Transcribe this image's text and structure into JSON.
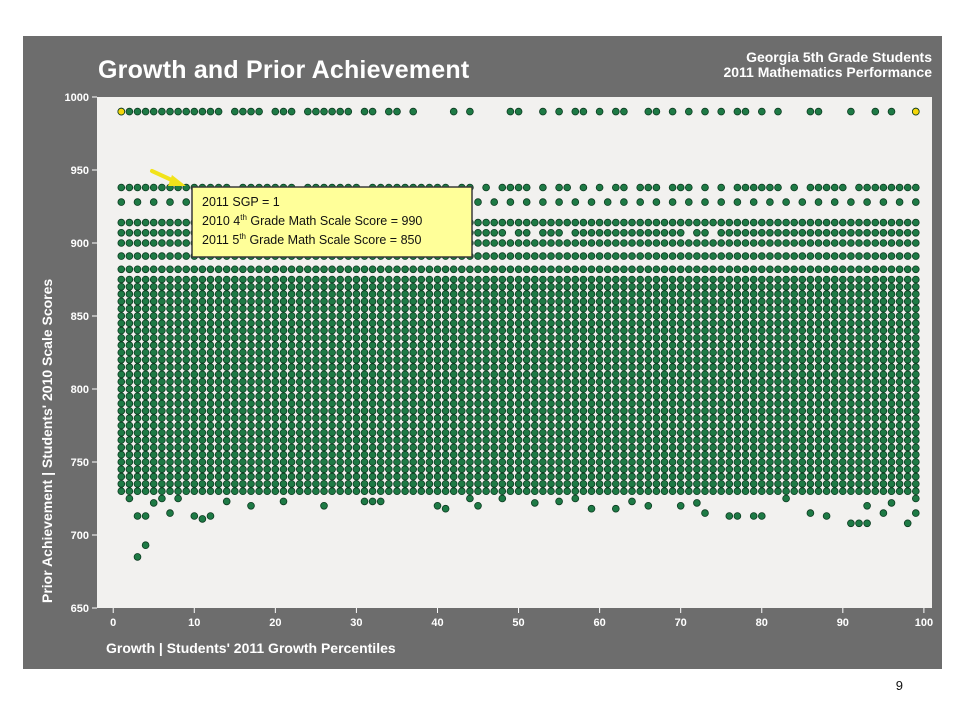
{
  "page": {
    "title": "Growth and Prior Achievement",
    "subtitle_line1": "Georgia 5th Grade Students",
    "subtitle_line2": "2011 Mathematics Performance",
    "page_number": "9"
  },
  "colors": {
    "panel_bg": "#6d6d6d",
    "plot_bg": "#f2f1ef",
    "point_fill": "#1e7a45",
    "point_stroke": "#0c3b20",
    "highlight_fill": "#f5d60a",
    "callout_bg": "#ffff99",
    "arrow": "#f2e31a"
  },
  "callout": {
    "line1": "2011 SGP = 1",
    "line2_pre": "2010 4",
    "line2_sup": "th",
    "line2_post": " Grade Math Scale Score = 990",
    "line3_pre": "2011 5",
    "line3_sup": "th",
    "line3_post": " Grade Math Scale Score = 850"
  },
  "chart_data": {
    "type": "scatter",
    "xlabel": "Growth | Students' 2011 Growth Percentiles",
    "ylabel": "Prior Achievement | Students' 2010 Scale Scores",
    "xlim": [
      -2,
      101
    ],
    "ylim": [
      650,
      1000
    ],
    "xticks": [
      0,
      10,
      20,
      30,
      40,
      50,
      60,
      70,
      80,
      90,
      100
    ],
    "yticks": [
      650,
      700,
      750,
      800,
      850,
      900,
      950,
      1000
    ],
    "grid": false,
    "dense_band": {
      "x_range": [
        1,
        99
      ],
      "y_range": [
        735,
        870
      ],
      "note_rows_step": 5
    },
    "discrete_rows": [
      {
        "y": 990,
        "x": [
          1,
          2,
          3,
          4,
          5,
          6,
          7,
          8,
          9,
          10,
          11,
          12,
          13,
          15,
          16,
          17,
          18,
          20,
          21,
          22,
          24,
          25,
          26,
          27,
          28,
          29,
          31,
          32,
          34,
          35,
          37,
          42,
          44,
          49,
          50,
          53,
          55,
          57,
          58,
          60,
          62,
          63,
          66,
          67,
          69,
          71,
          73,
          75,
          77,
          78,
          80,
          82,
          86,
          87,
          91,
          94,
          96,
          99
        ]
      },
      {
        "y": 938,
        "x": [
          1,
          2,
          3,
          4,
          5,
          6,
          7,
          8,
          9,
          10,
          11,
          12,
          13,
          14,
          16,
          17,
          18,
          19,
          20,
          21,
          22,
          24,
          25,
          26,
          27,
          28,
          29,
          30,
          32,
          33,
          34,
          35,
          36,
          37,
          38,
          39,
          40,
          41,
          43,
          44,
          46,
          48,
          49,
          50,
          51,
          53,
          55,
          56,
          58,
          60,
          62,
          63,
          65,
          66,
          67,
          69,
          70,
          71,
          73,
          75,
          77,
          78,
          79,
          80,
          81,
          82,
          84,
          86,
          87,
          88,
          89,
          90,
          92,
          93,
          94,
          95,
          96,
          97,
          98,
          99
        ]
      },
      {
        "y": 928,
        "x": [
          1,
          3,
          5,
          7,
          9,
          11,
          13,
          15,
          17,
          19,
          21,
          23,
          25,
          27,
          29,
          31,
          33,
          35,
          37,
          39,
          41,
          43,
          45,
          47,
          49,
          51,
          53,
          55,
          57,
          59,
          61,
          63,
          65,
          67,
          69,
          71,
          73,
          75,
          77,
          79,
          81,
          83,
          85,
          87,
          89,
          91,
          93,
          95,
          97,
          99
        ]
      },
      {
        "y": 914,
        "x": [
          1,
          2,
          3,
          4,
          5,
          6,
          7,
          8,
          9,
          10,
          11,
          12,
          13,
          14,
          15,
          16,
          17,
          18,
          19,
          20,
          21,
          22,
          23,
          24,
          25,
          26,
          27,
          28,
          29,
          30,
          31,
          32,
          33,
          34,
          35,
          36,
          37,
          38,
          39,
          40,
          41,
          42,
          43,
          44,
          45,
          46,
          47,
          48,
          49,
          50,
          51,
          52,
          53,
          54,
          55,
          56,
          57,
          58,
          59,
          60,
          61,
          62,
          63,
          64,
          65,
          66,
          67,
          68,
          69,
          70,
          71,
          72,
          73,
          74,
          75,
          76,
          77,
          78,
          79,
          80,
          81,
          82,
          83,
          84,
          85,
          86,
          87,
          88,
          89,
          90,
          91,
          92,
          93,
          94,
          95,
          96,
          97,
          98,
          99
        ]
      },
      {
        "y": 907,
        "x": [
          1,
          2,
          3,
          4,
          5,
          6,
          7,
          8,
          9,
          10,
          11,
          12,
          13,
          14,
          15,
          16,
          17,
          18,
          19,
          20,
          21,
          22,
          23,
          24,
          25,
          26,
          27,
          28,
          29,
          30,
          31,
          32,
          33,
          34,
          35,
          37,
          38,
          39,
          40,
          41,
          42,
          44,
          45,
          46,
          47,
          48,
          50,
          51,
          53,
          54,
          55,
          57,
          58,
          59,
          60,
          61,
          62,
          63,
          64,
          65,
          66,
          67,
          68,
          69,
          70,
          72,
          73,
          75,
          76,
          77,
          78,
          79,
          80,
          81,
          82,
          83,
          84,
          85,
          86,
          87,
          88,
          89,
          90,
          91,
          92,
          93,
          94,
          95,
          96,
          97,
          98,
          99
        ]
      },
      {
        "y": 900,
        "x": [
          1,
          2,
          3,
          4,
          5,
          6,
          7,
          8,
          9,
          10,
          11,
          12,
          13,
          14,
          15,
          16,
          17,
          18,
          19,
          20,
          21,
          22,
          23,
          24,
          25,
          26,
          27,
          28,
          29,
          30,
          31,
          32,
          33,
          34,
          35,
          36,
          37,
          38,
          39,
          40,
          41,
          42,
          43,
          44,
          45,
          46,
          47,
          48,
          49,
          50,
          51,
          52,
          53,
          54,
          55,
          56,
          57,
          58,
          59,
          60,
          61,
          62,
          63,
          64,
          65,
          66,
          67,
          68,
          69,
          70,
          71,
          72,
          73,
          74,
          75,
          76,
          77,
          78,
          79,
          80,
          81,
          82,
          83,
          84,
          85,
          86,
          87,
          88,
          89,
          90,
          91,
          92,
          93,
          94,
          95,
          96,
          97,
          98,
          99
        ]
      },
      {
        "y": 891,
        "x": [
          1,
          2,
          3,
          4,
          5,
          6,
          7,
          8,
          9,
          10,
          11,
          12,
          13,
          14,
          15,
          16,
          17,
          18,
          19,
          20,
          21,
          22,
          23,
          24,
          25,
          26,
          27,
          28,
          29,
          30,
          31,
          32,
          33,
          34,
          35,
          36,
          37,
          38,
          39,
          40,
          41,
          42,
          43,
          44,
          45,
          46,
          47,
          48,
          49,
          50,
          51,
          52,
          53,
          54,
          55,
          56,
          57,
          58,
          59,
          60,
          61,
          62,
          63,
          64,
          65,
          66,
          67,
          68,
          69,
          70,
          71,
          72,
          73,
          74,
          75,
          76,
          77,
          78,
          79,
          80,
          81,
          82,
          83,
          84,
          85,
          86,
          87,
          88,
          89,
          90,
          91,
          92,
          93,
          94,
          95,
          96,
          97,
          98,
          99
        ]
      },
      {
        "y": 882,
        "x": [
          1,
          2,
          3,
          4,
          5,
          6,
          7,
          8,
          9,
          10,
          11,
          12,
          13,
          14,
          15,
          16,
          17,
          18,
          19,
          20,
          21,
          22,
          23,
          24,
          25,
          26,
          27,
          28,
          29,
          30,
          31,
          32,
          33,
          34,
          35,
          36,
          37,
          38,
          39,
          40,
          41,
          42,
          43,
          44,
          45,
          46,
          47,
          48,
          49,
          50,
          51,
          52,
          53,
          54,
          55,
          56,
          57,
          58,
          59,
          60,
          61,
          62,
          63,
          64,
          65,
          66,
          67,
          68,
          69,
          70,
          71,
          72,
          73,
          74,
          75,
          76,
          77,
          78,
          79,
          80,
          81,
          82,
          83,
          84,
          85,
          86,
          87,
          88,
          89,
          90,
          91,
          92,
          93,
          94,
          95,
          96,
          97,
          98,
          99
        ]
      },
      {
        "y": 875,
        "x": [
          1,
          2,
          3,
          4,
          5,
          6,
          7,
          8,
          9,
          10,
          11,
          12,
          13,
          14,
          15,
          16,
          17,
          18,
          19,
          20,
          21,
          22,
          23,
          24,
          25,
          26,
          27,
          28,
          29,
          30,
          31,
          32,
          33,
          34,
          35,
          36,
          37,
          38,
          39,
          40,
          41,
          42,
          43,
          44,
          45,
          46,
          47,
          48,
          49,
          50,
          51,
          52,
          53,
          54,
          55,
          56,
          57,
          58,
          59,
          60,
          61,
          62,
          63,
          64,
          65,
          66,
          67,
          68,
          69,
          70,
          71,
          72,
          73,
          74,
          75,
          76,
          77,
          78,
          79,
          80,
          81,
          82,
          83,
          84,
          85,
          86,
          87,
          88,
          89,
          90,
          91,
          92,
          93,
          94,
          95,
          96,
          97,
          98,
          99
        ]
      },
      {
        "y": 730,
        "x": [
          1,
          2,
          3,
          4,
          5,
          6,
          7,
          8,
          9,
          10,
          11,
          12,
          13,
          14,
          15,
          16,
          17,
          18,
          19,
          20,
          21,
          22,
          23,
          24,
          25,
          26,
          27,
          28,
          29,
          30,
          31,
          32,
          33,
          34,
          35,
          36,
          37,
          38,
          39,
          40,
          41,
          42,
          43,
          44,
          45,
          46,
          47,
          48,
          49,
          50,
          51,
          52,
          53,
          54,
          55,
          56,
          57,
          58,
          59,
          60,
          61,
          62,
          63,
          64,
          65,
          66,
          67,
          68,
          69,
          70,
          71,
          72,
          73,
          74,
          75,
          76,
          77,
          78,
          79,
          80,
          81,
          82,
          83,
          84,
          85,
          86,
          87,
          88,
          89,
          90,
          91,
          92,
          93,
          94,
          95,
          96,
          97,
          98,
          99
        ]
      }
    ],
    "low_outliers": [
      {
        "x": 2,
        "y": 725
      },
      {
        "x": 3,
        "y": 713
      },
      {
        "x": 4,
        "y": 713
      },
      {
        "x": 4,
        "y": 693
      },
      {
        "x": 3,
        "y": 685
      },
      {
        "x": 5,
        "y": 722
      },
      {
        "x": 6,
        "y": 725
      },
      {
        "x": 7,
        "y": 715
      },
      {
        "x": 8,
        "y": 725
      },
      {
        "x": 10,
        "y": 713
      },
      {
        "x": 11,
        "y": 711
      },
      {
        "x": 12,
        "y": 713
      },
      {
        "x": 14,
        "y": 723
      },
      {
        "x": 17,
        "y": 720
      },
      {
        "x": 21,
        "y": 723
      },
      {
        "x": 26,
        "y": 720
      },
      {
        "x": 31,
        "y": 723
      },
      {
        "x": 32,
        "y": 723
      },
      {
        "x": 33,
        "y": 723
      },
      {
        "x": 40,
        "y": 720
      },
      {
        "x": 41,
        "y": 718
      },
      {
        "x": 44,
        "y": 725
      },
      {
        "x": 45,
        "y": 720
      },
      {
        "x": 48,
        "y": 725
      },
      {
        "x": 52,
        "y": 722
      },
      {
        "x": 55,
        "y": 723
      },
      {
        "x": 57,
        "y": 725
      },
      {
        "x": 59,
        "y": 718
      },
      {
        "x": 62,
        "y": 718
      },
      {
        "x": 64,
        "y": 723
      },
      {
        "x": 66,
        "y": 720
      },
      {
        "x": 70,
        "y": 720
      },
      {
        "x": 72,
        "y": 722
      },
      {
        "x": 73,
        "y": 715
      },
      {
        "x": 76,
        "y": 713
      },
      {
        "x": 77,
        "y": 713
      },
      {
        "x": 79,
        "y": 713
      },
      {
        "x": 80,
        "y": 713
      },
      {
        "x": 83,
        "y": 725
      },
      {
        "x": 86,
        "y": 715
      },
      {
        "x": 88,
        "y": 713
      },
      {
        "x": 91,
        "y": 708
      },
      {
        "x": 92,
        "y": 708
      },
      {
        "x": 93,
        "y": 720
      },
      {
        "x": 93,
        "y": 708
      },
      {
        "x": 95,
        "y": 715
      },
      {
        "x": 96,
        "y": 722
      },
      {
        "x": 98,
        "y": 708
      },
      {
        "x": 99,
        "y": 715
      },
      {
        "x": 99,
        "y": 725
      }
    ],
    "highlighted_points": [
      {
        "x": 1,
        "y": 990
      },
      {
        "x": 99,
        "y": 990
      }
    ]
  }
}
